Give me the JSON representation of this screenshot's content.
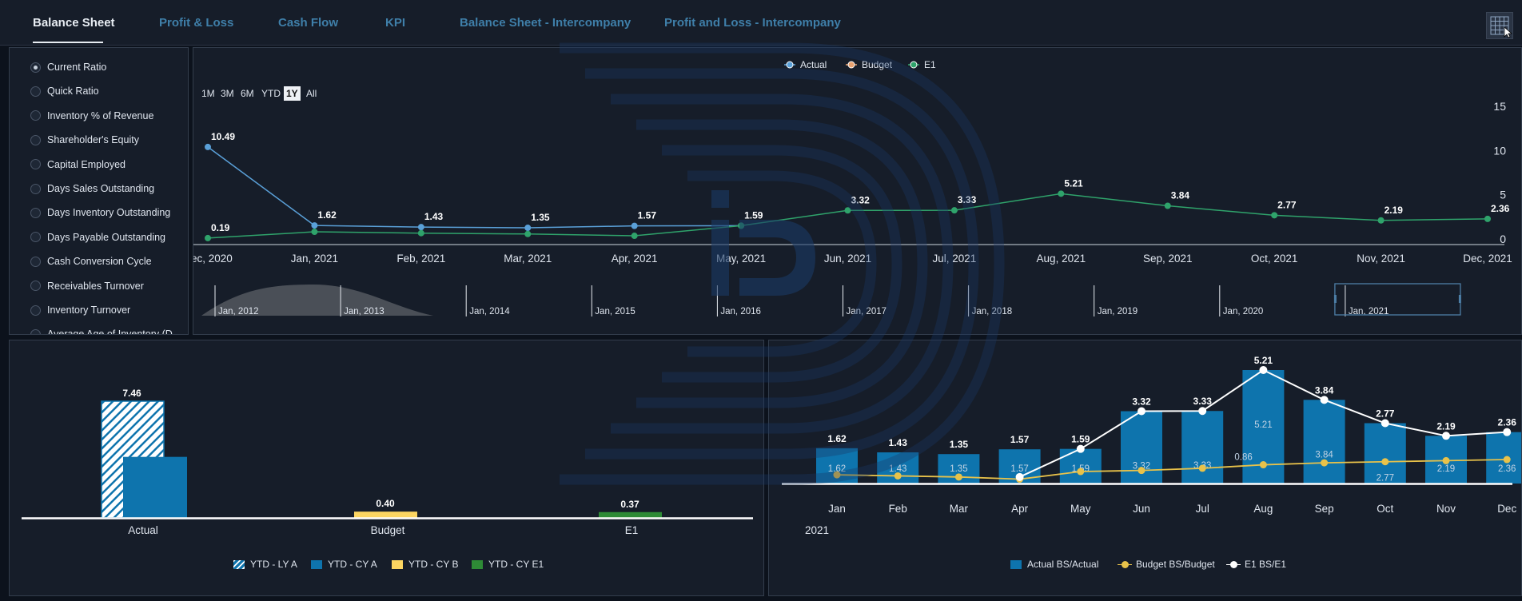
{
  "tabs": [
    {
      "label": "Balance Sheet",
      "active": true
    },
    {
      "label": "Profit & Loss",
      "active": false
    },
    {
      "label": "Cash Flow",
      "active": false
    },
    {
      "label": "KPI",
      "active": false
    },
    {
      "label": "Balance Sheet - Intercompany",
      "active": false
    },
    {
      "label": "Profit and Loss - Intercompany",
      "active": false
    }
  ],
  "grid_button": {
    "icon": "grid-icon"
  },
  "ratios": {
    "items": [
      "Current Ratio",
      "Quick Ratio",
      "Inventory % of Revenue",
      "Shareholder's Equity",
      "Capital Employed",
      "Days Sales Outstanding",
      "Days Inventory Outstanding",
      "Days Payable Outstanding",
      "Cash Conversion Cycle",
      "Receivables Turnover",
      "Inventory Turnover",
      "Average Age of Inventory (D"
    ],
    "selected": "Current Ratio"
  },
  "range_buttons": [
    "1M",
    "3M",
    "6M",
    "YTD",
    "1Y",
    "All"
  ],
  "range_selected": "1Y",
  "colors": {
    "actual": "#5aa0d8",
    "budget": "#e8a270",
    "e1": "#2fa36b",
    "bar_blue": "#0e74ad",
    "ytd_cy_b": "#fcd561",
    "ytd_cy_e1": "#2e8b36",
    "budget_line": "#e8c24a",
    "e1_line": "#ffffff"
  },
  "chart_data": [
    {
      "type": "line",
      "legend": [
        "Actual",
        "Budget",
        "E1"
      ],
      "legend_placement": "top-center",
      "x": [
        "Dec, 2020",
        "Jan, 2021",
        "Feb, 2021",
        "Mar, 2021",
        "Apr, 2021",
        "May, 2021",
        "Jun, 2021",
        "Jul, 2021",
        "Aug, 2021",
        "Sep, 2021",
        "Oct, 2021",
        "Nov, 2021",
        "Dec, 2021"
      ],
      "y_ticks": [
        "0",
        "5",
        "10",
        "15"
      ],
      "ylim": [
        0,
        15
      ],
      "series": [
        {
          "name": "Actual",
          "values": [
            10.49,
            1.62,
            1.43,
            1.35,
            1.57,
            1.59,
            null,
            null,
            null,
            null,
            null,
            null,
            null
          ]
        },
        {
          "name": "E1",
          "values": [
            0.19,
            0.9,
            0.75,
            0.65,
            0.45,
            1.59,
            3.32,
            3.33,
            5.21,
            3.84,
            2.77,
            2.19,
            2.36
          ]
        }
      ],
      "data_labels": [
        {
          "series": "Actual",
          "index": 0,
          "text": "10.49"
        },
        {
          "series": "Actual",
          "index": 1,
          "text": "1.62"
        },
        {
          "series": "Actual",
          "index": 2,
          "text": "1.43"
        },
        {
          "series": "Actual",
          "index": 3,
          "text": "1.35"
        },
        {
          "series": "Actual",
          "index": 4,
          "text": "1.57"
        },
        {
          "series": "E1",
          "index": 0,
          "text": "0.19"
        },
        {
          "series": "E1",
          "index": 5,
          "text": "1.59"
        },
        {
          "series": "E1",
          "index": 6,
          "text": "3.32"
        },
        {
          "series": "E1",
          "index": 7,
          "text": "3.33"
        },
        {
          "series": "E1",
          "index": 8,
          "text": "5.21"
        },
        {
          "series": "E1",
          "index": 9,
          "text": "3.84"
        },
        {
          "series": "E1",
          "index": 10,
          "text": "2.77"
        },
        {
          "series": "E1",
          "index": 11,
          "text": "2.19"
        },
        {
          "series": "E1",
          "index": 12,
          "text": "2.36"
        }
      ],
      "navigator": {
        "labels": [
          "Jan, 2012",
          "Jan, 2013",
          "Jan, 2014",
          "Jan, 2015",
          "Jan, 2016",
          "Jan, 2017",
          "Jan, 2018",
          "Jan, 2019",
          "Jan, 2020",
          "Jan, 2021"
        ],
        "selected": "Jan, 2021"
      }
    },
    {
      "type": "bar",
      "categories": [
        "Actual",
        "Budget",
        "E1"
      ],
      "series": [
        {
          "name": "YTD - LY A",
          "values": [
            7.46,
            null,
            null
          ]
        },
        {
          "name": "YTD - CY A",
          "values": [
            3.9,
            null,
            null
          ]
        },
        {
          "name": "YTD - CY B",
          "values": [
            null,
            0.4,
            null
          ]
        },
        {
          "name": "YTD - CY E1",
          "values": [
            null,
            null,
            0.37
          ]
        }
      ],
      "data_labels": [
        "7.46",
        "0.40",
        "0.37"
      ],
      "legend": [
        "YTD - LY A",
        "YTD - CY A",
        "YTD - CY B",
        "YTD - CY E1"
      ],
      "legend_placement": "bottom-center"
    },
    {
      "type": "bar",
      "categories": [
        "Jan",
        "Feb",
        "Mar",
        "Apr",
        "May",
        "Jun",
        "Jul",
        "Aug",
        "Sep",
        "Oct",
        "Nov",
        "Dec"
      ],
      "year_label": "2021",
      "series": [
        {
          "name": "Actual BS/Actual",
          "kind": "bar",
          "values": [
            1.62,
            1.43,
            1.35,
            1.57,
            1.59,
            3.32,
            3.33,
            5.21,
            3.84,
            2.77,
            2.19,
            2.36
          ]
        },
        {
          "name": "Budget BS/Budget",
          "kind": "line",
          "values": [
            0.4,
            0.35,
            0.3,
            0.2,
            0.55,
            0.6,
            0.7,
            0.86,
            0.95,
            1.0,
            1.05,
            1.1
          ]
        },
        {
          "name": "E1 BS/E1",
          "kind": "line",
          "values": [
            null,
            null,
            null,
            0.3,
            1.59,
            3.32,
            3.33,
            5.21,
            3.84,
            2.77,
            2.19,
            2.36
          ]
        }
      ],
      "bar_top_labels": [
        "1.62",
        "1.43",
        "1.35",
        "1.57",
        "1.59",
        "3.32",
        "3.33",
        "5.21",
        "3.84",
        "2.77",
        "2.19",
        "2.36"
      ],
      "bar_inner_labels": [
        "1.62",
        "1.43",
        "1.35",
        "1.57",
        "1.59",
        "3.32",
        "3.33",
        "5.21",
        "3.84",
        "2.77",
        "2.19",
        "2.36"
      ],
      "budget_label": {
        "index": 7,
        "text": "0.86"
      },
      "legend": [
        "Actual BS/Actual",
        "Budget BS/Budget",
        "E1 BS/E1"
      ],
      "legend_placement": "bottom-center"
    }
  ]
}
